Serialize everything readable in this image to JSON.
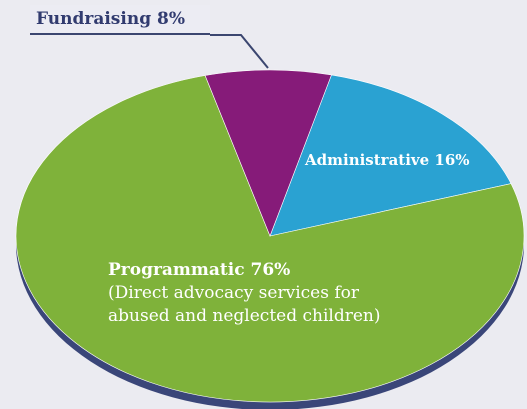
{
  "chart_data": {
    "type": "pie",
    "categories": [
      "Administrative",
      "Programmatic",
      "Fundraising"
    ],
    "values": [
      16,
      76,
      8
    ],
    "title": "",
    "labels": {
      "fundraising": "Fundraising 8%",
      "administrative": "Administrative 16%",
      "programmatic": "Programmatic 76%",
      "programmatic_detail_line1": "(Direct advocacy services for",
      "programmatic_detail_line2": "abused and neglected children)"
    },
    "legend": "none",
    "three_d": true
  },
  "colors": {
    "background": "#ebebf1",
    "programmatic": "#7fb23a",
    "administrative": "#2aa2d2",
    "fundraising": "#861b79",
    "edge": "#3a4679",
    "callout_line": "#3b4670",
    "label_dark": "#313b6f",
    "label_light": "#ffffff"
  }
}
